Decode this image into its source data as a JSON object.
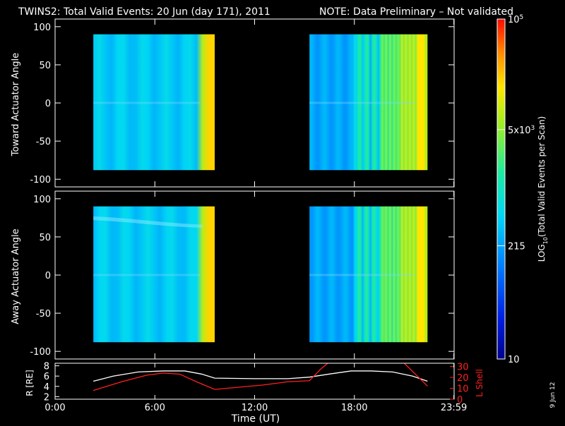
{
  "title": {
    "main": "TWINS2: Total Valid Events: 20 Jun (day 171), 2011",
    "note": "NOTE: Data Preliminary – Not validated",
    "note_color": "#ff2020"
  },
  "side_date": "9 Jun 12",
  "chart_data": [
    {
      "type": "heatmap",
      "ylabel": "Toward Actuator Angle",
      "ylim": [
        -110,
        110
      ],
      "yticks": [
        100,
        50,
        0,
        -50,
        -100
      ],
      "xlim": [
        0,
        24
      ],
      "data_blocks": [
        {
          "x_start": 2.3,
          "x_end": 9.6,
          "y_range": [
            -88,
            90
          ]
        },
        {
          "x_start": 15.3,
          "x_end": 22.4,
          "y_range": [
            -88,
            90
          ]
        }
      ]
    },
    {
      "type": "heatmap",
      "ylabel": "Away Actuator Angle",
      "ylim": [
        -110,
        110
      ],
      "yticks": [
        100,
        50,
        0,
        -50,
        -100
      ],
      "xlim": [
        0,
        24
      ],
      "data_blocks": [
        {
          "x_start": 2.3,
          "x_end": 9.6,
          "y_range": [
            -88,
            90
          ]
        },
        {
          "x_start": 15.3,
          "x_end": 22.4,
          "y_range": [
            -88,
            90
          ]
        }
      ]
    },
    {
      "type": "line",
      "ylabel_left": "R [RE]",
      "ylabel_right": "L Shell",
      "ylim_left": [
        1.5,
        8.5
      ],
      "ylim_right": [
        0,
        33
      ],
      "yticks_left": [
        2,
        4,
        6,
        8
      ],
      "yticks_right": [
        0,
        10,
        20,
        30
      ],
      "right_axis_color": "#ff2020",
      "series": [
        {
          "axis": "left",
          "color": "#ffffff",
          "x": [
            2.3,
            3.5,
            5.0,
            6.5,
            7.8,
            8.8,
            9.6,
            12.0,
            14.0,
            15.3,
            16.5,
            17.8,
            19.0,
            20.3,
            21.5,
            22.4
          ],
          "y": [
            5.0,
            6.0,
            6.8,
            7.0,
            7.0,
            6.4,
            5.6,
            5.5,
            5.5,
            5.8,
            6.4,
            7.0,
            7.0,
            6.8,
            6.0,
            5.0
          ]
        },
        {
          "axis": "right",
          "color": "#ff2020",
          "x": [
            2.3,
            4.0,
            5.5,
            6.5,
            7.5,
            8.5,
            9.6,
            12.5,
            14.0,
            15.3,
            16.0,
            16.4
          ],
          "y": [
            8,
            16,
            22,
            24,
            23,
            16,
            9,
            13,
            16,
            17,
            28,
            33
          ]
        },
        {
          "axis": "right",
          "color": "#ff2020",
          "x": [
            21.0,
            22.4
          ],
          "y": [
            33,
            12
          ]
        }
      ]
    }
  ],
  "colorbar": {
    "label": "LOG10(Total Valid Events per Scan)",
    "label_main": "LOG",
    "label_sub": "10",
    "label_rest": "(Total Valid Events per Scan)",
    "range": [
      10,
      100000
    ],
    "scale": "log",
    "ticks": [
      {
        "value": 100000,
        "base": "10",
        "sup": "5",
        "sub": "",
        "text": ""
      },
      {
        "value": 5000,
        "base": "5x10",
        "sup": "3",
        "sub": "",
        "text": ""
      },
      {
        "value": 215,
        "base": "",
        "sup": "",
        "sub": "",
        "text": "215"
      },
      {
        "value": 10,
        "base": "",
        "sup": "",
        "sub": "",
        "text": "10"
      }
    ]
  },
  "x_axis": {
    "label": "Time (UT)",
    "ticks": [
      {
        "value": 0,
        "label": "0:00"
      },
      {
        "value": 6,
        "label": "6:00"
      },
      {
        "value": 12,
        "label": "12:00"
      },
      {
        "value": 18,
        "label": "18:00"
      },
      {
        "value": 23.983,
        "label": "23:59"
      }
    ]
  }
}
